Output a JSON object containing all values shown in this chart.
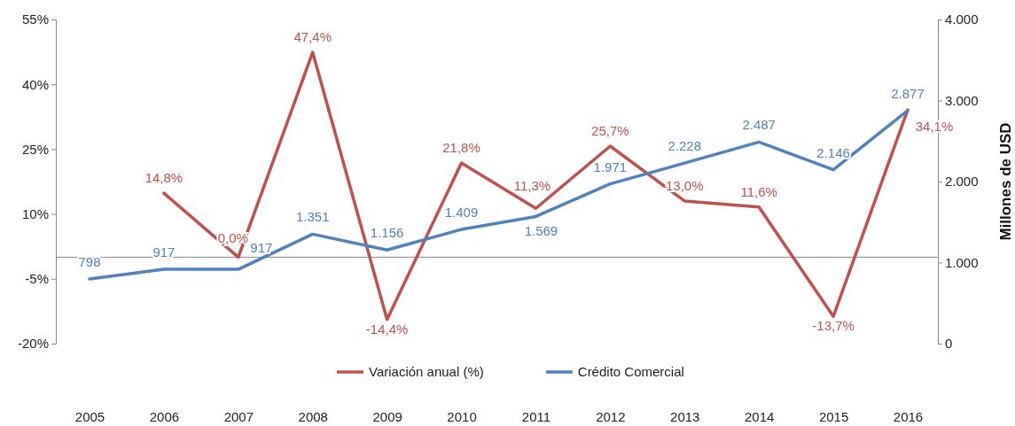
{
  "chart_data": {
    "type": "line",
    "ylabel": null,
    "y2label": "Millones de USD",
    "categories": [
      "2005",
      "2006",
      "2007",
      "2008",
      "2009",
      "2010",
      "2011",
      "2012",
      "2013",
      "2014",
      "2015",
      "2016"
    ],
    "series": [
      {
        "name": "Variación anual (%)",
        "color": "#c0504d",
        "values": [
          null,
          14.8,
          0.0,
          47.4,
          -14.4,
          21.8,
          11.3,
          25.7,
          13.0,
          11.6,
          -13.7,
          34.1
        ],
        "value_labels": [
          null,
          "14,8%",
          "0,0%",
          "47,4%",
          "-14,4%",
          "21,8%",
          "11,3%",
          "25,7%",
          "13,0%",
          "11,6%",
          "-13,7%",
          "34,1%"
        ]
      },
      {
        "name": "Crédito Comercial",
        "color": "#4f81bd",
        "axis": "y2",
        "values": [
          798,
          917,
          917,
          1351,
          1156,
          1409,
          1569,
          1971,
          2228,
          2487,
          2146,
          2877
        ],
        "value_labels": [
          "798",
          "917",
          "917",
          "1.351",
          "1.156",
          "1.409",
          "1.569",
          "1.971",
          "2.228",
          "2.487",
          "2.146",
          "2.877"
        ]
      }
    ],
    "ylim": [
      -20,
      55
    ],
    "yticks": [
      {
        "value": -20,
        "label": "-20%"
      },
      {
        "value": -5,
        "label": "-5%"
      },
      {
        "value": 10,
        "label": "10%"
      },
      {
        "value": 25,
        "label": "25%"
      },
      {
        "value": 40,
        "label": "40%"
      },
      {
        "value": 55,
        "label": "55%"
      }
    ],
    "y2lim": [
      0,
      4000
    ],
    "y2ticks": [
      0,
      {
        "value": 1000,
        "label": "1.000"
      },
      {
        "value": 2000,
        "label": "2.000"
      },
      {
        "value": 3000,
        "label": "3.000"
      },
      {
        "value": 4000,
        "label": "4.000"
      }
    ],
    "grid": false,
    "legend": "bottom",
    "marker": "none",
    "line_style": "solid"
  }
}
